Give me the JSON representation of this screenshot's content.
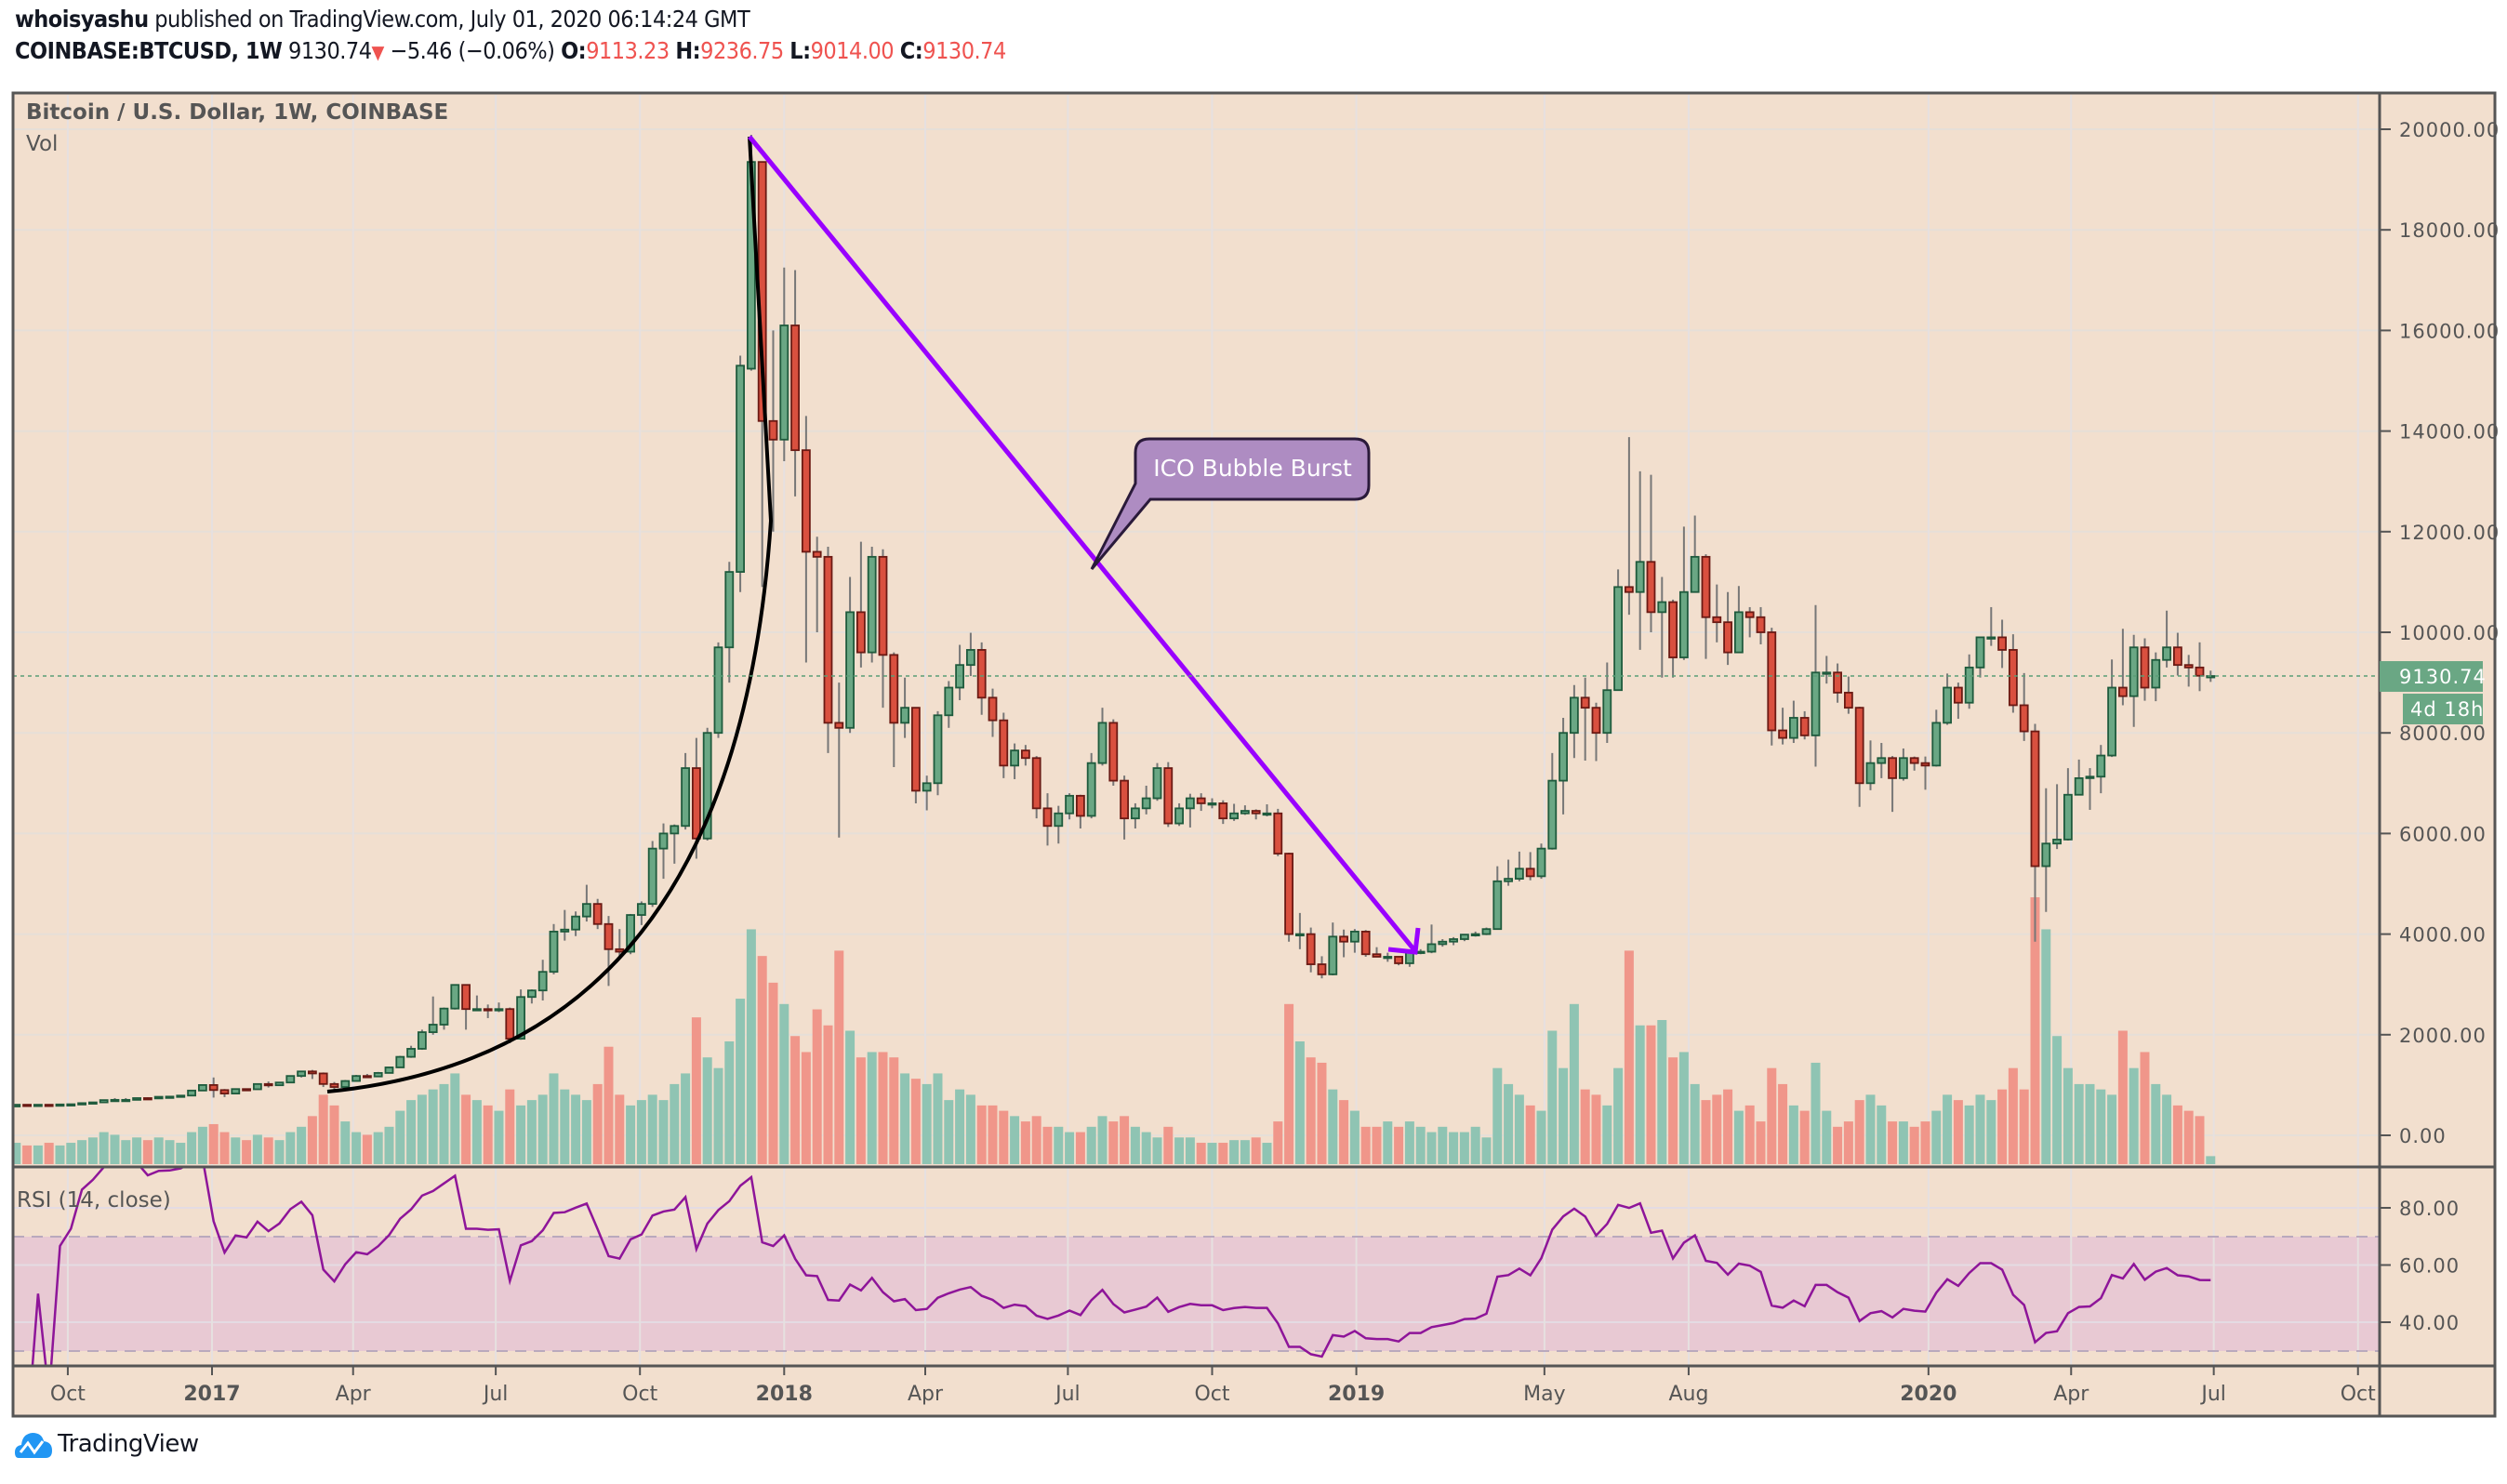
{
  "header": {
    "publisher": "whoisyashu",
    "published_text": "published on TradingView.com, July 01, 2020 06:14:24 GMT",
    "symbol": "COINBASE:BTCUSD, 1W",
    "last": "9130.74",
    "change": "−5.46 (−0.06%)",
    "o_label": "O:",
    "o": "9113.23",
    "h_label": "H:",
    "h": "9236.75",
    "l_label": "L:",
    "l": "9014.00",
    "c_label": "C:",
    "c": "9130.74",
    "down_arrow_icon": "triangle-down"
  },
  "chart_title": "Bitcoin / U.S. Dollar, 1W, COINBASE",
  "volume_label": "Vol",
  "rsi_label": "RSI (14, close)",
  "price_label": "9130.74",
  "countdown_label": "4d 18h",
  "annotation": "ICO Bubble Burst",
  "logo_text": "TradingView",
  "colors": {
    "background": "#f2dfce",
    "up": "#6aa784",
    "up_border": "#1f5b3d",
    "down": "#d9503f",
    "down_border": "#6b1a14",
    "vol_up": "#8fc4b3",
    "vol_down": "#f0968a",
    "rsi_line": "#8e1599",
    "rsi_band": "#e8c9d3",
    "trendline": "#9900ff",
    "callout": "#ae8cc2",
    "last_price": "#6aa784"
  },
  "chart_data": {
    "type": "candlestick",
    "interval": "1W",
    "y_axis": {
      "ticks": [
        "0.00",
        "2000.00",
        "4000.00",
        "6000.00",
        "8000.00",
        "10000.00",
        "12000.00",
        "14000.00",
        "16000.00",
        "18000.00",
        "20000.00"
      ],
      "range": [
        0,
        20000
      ]
    },
    "rsi_axis": {
      "ticks": [
        "40.00",
        "60.00",
        "80.00"
      ],
      "bands": [
        30,
        70
      ]
    },
    "x_ticks": [
      {
        "label": "Oct",
        "bold": false
      },
      {
        "label": "2017",
        "bold": true
      },
      {
        "label": "Apr",
        "bold": false
      },
      {
        "label": "Jul",
        "bold": false
      },
      {
        "label": "Oct",
        "bold": false
      },
      {
        "label": "2018",
        "bold": true
      },
      {
        "label": "Apr",
        "bold": false
      },
      {
        "label": "Jul",
        "bold": false
      },
      {
        "label": "Oct",
        "bold": false
      },
      {
        "label": "2019",
        "bold": true
      },
      {
        "label": "May",
        "bold": false
      },
      {
        "label": "Aug",
        "bold": false
      },
      {
        "label": "2020",
        "bold": true
      },
      {
        "label": "Apr",
        "bold": false
      },
      {
        "label": "Jul",
        "bold": false
      },
      {
        "label": "Oct",
        "bold": false
      }
    ],
    "ohlcv_columns": [
      "open",
      "high",
      "low",
      "close",
      "volume_relative"
    ],
    "ohlcv": [
      [
        573,
        612,
        570,
        608,
        8
      ],
      [
        608,
        612,
        600,
        607,
        7
      ],
      [
        607,
        612,
        602,
        608,
        7
      ],
      [
        608,
        610,
        595,
        603,
        8
      ],
      [
        603,
        615,
        600,
        614,
        7
      ],
      [
        614,
        622,
        608,
        618,
        8
      ],
      [
        618,
        642,
        615,
        640,
        9
      ],
      [
        640,
        660,
        630,
        655,
        10
      ],
      [
        655,
        705,
        650,
        700,
        12
      ],
      [
        700,
        740,
        680,
        705,
        11
      ],
      [
        705,
        740,
        690,
        705,
        9
      ],
      [
        705,
        750,
        700,
        740,
        10
      ],
      [
        740,
        755,
        720,
        733,
        9
      ],
      [
        733,
        770,
        730,
        766,
        10
      ],
      [
        766,
        775,
        750,
        770,
        9
      ],
      [
        770,
        795,
        765,
        790,
        8
      ],
      [
        790,
        900,
        785,
        890,
        12
      ],
      [
        890,
        1000,
        880,
        1000,
        14
      ],
      [
        1000,
        1150,
        750,
        900,
        15
      ],
      [
        900,
        920,
        760,
        830,
        12
      ],
      [
        830,
        930,
        820,
        920,
        10
      ],
      [
        920,
        930,
        880,
        915,
        9
      ],
      [
        915,
        1025,
        910,
        1020,
        11
      ],
      [
        1020,
        1070,
        950,
        995,
        10
      ],
      [
        995,
        1060,
        990,
        1050,
        9
      ],
      [
        1050,
        1190,
        1040,
        1180,
        12
      ],
      [
        1180,
        1280,
        1150,
        1270,
        14
      ],
      [
        1270,
        1300,
        1120,
        1230,
        18
      ],
      [
        1230,
        1250,
        960,
        1020,
        26
      ],
      [
        1020,
        1060,
        890,
        960,
        22
      ],
      [
        960,
        1100,
        940,
        1080,
        16
      ],
      [
        1080,
        1200,
        1070,
        1180,
        12
      ],
      [
        1180,
        1220,
        1140,
        1170,
        11
      ],
      [
        1170,
        1260,
        1160,
        1240,
        12
      ],
      [
        1240,
        1360,
        1230,
        1350,
        14
      ],
      [
        1350,
        1580,
        1340,
        1560,
        20
      ],
      [
        1560,
        1780,
        1540,
        1720,
        24
      ],
      [
        1720,
        2100,
        1700,
        2050,
        26
      ],
      [
        2050,
        2760,
        2000,
        2200,
        28
      ],
      [
        2200,
        2540,
        2100,
        2520,
        30
      ],
      [
        2520,
        3000,
        2500,
        2990,
        34
      ],
      [
        2990,
        2990,
        2100,
        2510,
        26
      ],
      [
        2510,
        2780,
        2500,
        2510,
        24
      ],
      [
        2510,
        2600,
        2330,
        2500,
        22
      ],
      [
        2500,
        2640,
        2450,
        2510,
        20
      ],
      [
        2510,
        2540,
        1830,
        1920,
        28
      ],
      [
        1920,
        2900,
        1900,
        2750,
        22
      ],
      [
        2750,
        2900,
        2620,
        2880,
        24
      ],
      [
        2880,
        3490,
        2680,
        3250,
        26
      ],
      [
        3250,
        4200,
        3200,
        4050,
        34
      ],
      [
        4050,
        4480,
        3870,
        4090,
        28
      ],
      [
        4090,
        4450,
        3960,
        4350,
        26
      ],
      [
        4350,
        4980,
        4250,
        4600,
        24
      ],
      [
        4600,
        4700,
        4100,
        4200,
        30
      ],
      [
        4200,
        4360,
        2970,
        3700,
        44
      ],
      [
        3700,
        4100,
        3500,
        3650,
        26
      ],
      [
        3650,
        4400,
        3600,
        4380,
        22
      ],
      [
        4380,
        4650,
        4180,
        4600,
        24
      ],
      [
        4600,
        5850,
        4540,
        5700,
        26
      ],
      [
        5700,
        6200,
        5100,
        6000,
        24
      ],
      [
        6000,
        6180,
        5400,
        6150,
        30
      ],
      [
        6150,
        7600,
        6080,
        7300,
        34
      ],
      [
        7300,
        7900,
        5500,
        5900,
        55
      ],
      [
        5900,
        8100,
        5860,
        8000,
        40
      ],
      [
        8000,
        9800,
        7900,
        9700,
        36
      ],
      [
        9700,
        11400,
        9000,
        11200,
        46
      ],
      [
        11200,
        15500,
        10800,
        15300,
        62
      ],
      [
        15240,
        19890,
        15200,
        19350,
        88
      ],
      [
        19350,
        19350,
        10900,
        14200,
        78
      ],
      [
        14200,
        16000,
        12000,
        13830,
        68
      ],
      [
        13830,
        17250,
        13400,
        16100,
        60
      ],
      [
        16100,
        17200,
        12700,
        13620,
        48
      ],
      [
        13620,
        14300,
        9400,
        11600,
        42
      ],
      [
        11600,
        11900,
        10000,
        11500,
        58
      ],
      [
        11500,
        11700,
        7600,
        8200,
        52
      ],
      [
        8200,
        9000,
        5920,
        8100,
        80
      ],
      [
        8100,
        11100,
        8000,
        10400,
        50
      ],
      [
        10400,
        11800,
        9300,
        9600,
        40
      ],
      [
        9600,
        11700,
        9400,
        11500,
        42
      ],
      [
        11500,
        11650,
        8500,
        9550,
        42
      ],
      [
        9550,
        9600,
        7320,
        8200,
        40
      ],
      [
        8200,
        9100,
        7900,
        8500,
        34
      ],
      [
        8500,
        8500,
        6600,
        6850,
        32
      ],
      [
        6850,
        7150,
        6460,
        7000,
        30
      ],
      [
        7000,
        8430,
        6760,
        8350,
        34
      ],
      [
        8350,
        9030,
        8100,
        8900,
        24
      ],
      [
        8900,
        9750,
        8650,
        9350,
        28
      ],
      [
        9350,
        9990,
        9130,
        9650,
        26
      ],
      [
        9650,
        9800,
        8360,
        8700,
        22
      ],
      [
        8700,
        8880,
        7920,
        8250,
        22
      ],
      [
        8250,
        8400,
        7100,
        7350,
        20
      ],
      [
        7350,
        7790,
        7080,
        7650,
        18
      ],
      [
        7650,
        7760,
        7350,
        7500,
        16
      ],
      [
        7500,
        7540,
        6300,
        6500,
        18
      ],
      [
        6500,
        6800,
        5760,
        6150,
        14
      ],
      [
        6150,
        6550,
        5800,
        6400,
        14
      ],
      [
        6400,
        6800,
        6280,
        6750,
        12
      ],
      [
        6750,
        6770,
        6100,
        6350,
        12
      ],
      [
        6350,
        7600,
        6300,
        7400,
        14
      ],
      [
        7400,
        8500,
        7350,
        8200,
        18
      ],
      [
        8200,
        8270,
        6950,
        7050,
        16
      ],
      [
        7050,
        7150,
        5880,
        6300,
        18
      ],
      [
        6300,
        6600,
        6100,
        6500,
        14
      ],
      [
        6500,
        6950,
        6380,
        6700,
        12
      ],
      [
        6700,
        7400,
        6650,
        7300,
        10
      ],
      [
        7300,
        7420,
        6130,
        6200,
        14
      ],
      [
        6200,
        6600,
        6150,
        6500,
        10
      ],
      [
        6500,
        6790,
        6120,
        6700,
        10
      ],
      [
        6700,
        6800,
        6450,
        6600,
        8
      ],
      [
        6600,
        6700,
        6500,
        6600,
        8
      ],
      [
        6600,
        6660,
        6190,
        6300,
        8
      ],
      [
        6300,
        6590,
        6250,
        6400,
        9
      ],
      [
        6400,
        6560,
        6370,
        6450,
        9
      ],
      [
        6450,
        6480,
        6280,
        6400,
        10
      ],
      [
        6400,
        6580,
        6340,
        6400,
        8
      ],
      [
        6400,
        6490,
        5550,
        5600,
        16
      ],
      [
        5600,
        5620,
        3850,
        4000,
        60
      ],
      [
        4000,
        4420,
        3700,
        4000,
        46
      ],
      [
        4000,
        4130,
        3240,
        3400,
        40
      ],
      [
        3400,
        3560,
        3120,
        3200,
        38
      ],
      [
        3200,
        4230,
        3180,
        3950,
        28
      ],
      [
        3950,
        4090,
        3540,
        3850,
        24
      ],
      [
        3850,
        4100,
        3630,
        4050,
        20
      ],
      [
        4050,
        4080,
        3550,
        3600,
        14
      ],
      [
        3600,
        3740,
        3540,
        3550,
        14
      ],
      [
        3550,
        3630,
        3450,
        3550,
        16
      ],
      [
        3550,
        3560,
        3380,
        3420,
        14
      ],
      [
        3420,
        3690,
        3350,
        3650,
        16
      ],
      [
        3650,
        3700,
        3600,
        3650,
        14
      ],
      [
        3650,
        4190,
        3620,
        3800,
        12
      ],
      [
        3800,
        3900,
        3750,
        3850,
        14
      ],
      [
        3850,
        3940,
        3780,
        3900,
        12
      ],
      [
        3900,
        4000,
        3860,
        3990,
        12
      ],
      [
        3990,
        4050,
        3950,
        4000,
        14
      ],
      [
        4000,
        4130,
        3980,
        4100,
        10
      ],
      [
        4100,
        5350,
        4090,
        5050,
        36
      ],
      [
        5050,
        5480,
        4960,
        5100,
        30
      ],
      [
        5100,
        5640,
        5050,
        5300,
        26
      ],
      [
        5300,
        5630,
        5070,
        5150,
        22
      ],
      [
        5150,
        5800,
        5100,
        5700,
        20
      ],
      [
        5700,
        7600,
        5680,
        7050,
        50
      ],
      [
        7050,
        8300,
        6380,
        8000,
        36
      ],
      [
        8000,
        8950,
        7500,
        8700,
        60
      ],
      [
        8700,
        9100,
        7450,
        8500,
        28
      ],
      [
        8500,
        8600,
        7440,
        8000,
        26
      ],
      [
        8000,
        9400,
        7800,
        8850,
        22
      ],
      [
        8850,
        11250,
        8850,
        10900,
        36
      ],
      [
        10900,
        13880,
        10350,
        10800,
        80
      ],
      [
        10800,
        13200,
        9650,
        11400,
        52
      ],
      [
        11400,
        13130,
        10000,
        10400,
        52
      ],
      [
        10400,
        11100,
        9100,
        10600,
        54
      ],
      [
        10600,
        10650,
        9100,
        9500,
        40
      ],
      [
        9500,
        12100,
        9450,
        10800,
        42
      ],
      [
        10800,
        12320,
        10800,
        11500,
        30
      ],
      [
        11500,
        11550,
        9470,
        10300,
        24
      ],
      [
        10300,
        10950,
        9800,
        10200,
        26
      ],
      [
        10200,
        10800,
        9350,
        9600,
        28
      ],
      [
        9600,
        10920,
        9600,
        10400,
        20
      ],
      [
        10400,
        10500,
        9900,
        10300,
        22
      ],
      [
        10300,
        10500,
        9760,
        10000,
        16
      ],
      [
        10000,
        10090,
        7750,
        8050,
        36
      ],
      [
        8050,
        8500,
        7770,
        7900,
        30
      ],
      [
        7900,
        8640,
        7800,
        8300,
        22
      ],
      [
        8300,
        8430,
        7870,
        7950,
        20
      ],
      [
        7950,
        10540,
        7330,
        9200,
        38
      ],
      [
        9200,
        9530,
        8980,
        9200,
        20
      ],
      [
        9200,
        9380,
        8600,
        8800,
        14
      ],
      [
        8800,
        9120,
        8380,
        8500,
        16
      ],
      [
        8500,
        8520,
        6530,
        7000,
        24
      ],
      [
        7000,
        7850,
        6860,
        7400,
        26
      ],
      [
        7400,
        7800,
        7100,
        7500,
        22
      ],
      [
        7500,
        7540,
        6430,
        7100,
        16
      ],
      [
        7100,
        7690,
        7050,
        7500,
        16
      ],
      [
        7500,
        7530,
        7250,
        7400,
        14
      ],
      [
        7400,
        7530,
        6870,
        7350,
        16
      ],
      [
        7350,
        8460,
        7330,
        8200,
        20
      ],
      [
        8200,
        9180,
        8160,
        8900,
        26
      ],
      [
        8900,
        9000,
        8280,
        8600,
        24
      ],
      [
        8600,
        9560,
        8480,
        9300,
        22
      ],
      [
        9300,
        9870,
        9100,
        9900,
        26
      ],
      [
        9900,
        10500,
        9730,
        9900,
        24
      ],
      [
        9900,
        10250,
        9290,
        9650,
        28
      ],
      [
        9650,
        9960,
        8400,
        8550,
        36
      ],
      [
        8550,
        9190,
        7840,
        8030,
        28
      ],
      [
        8030,
        8180,
        3850,
        5350,
        100
      ],
      [
        5350,
        6900,
        4440,
        5800,
        88
      ],
      [
        5800,
        6980,
        5690,
        5880,
        48
      ],
      [
        5880,
        7300,
        5860,
        6770,
        36
      ],
      [
        6770,
        7470,
        6760,
        7100,
        30
      ],
      [
        7100,
        7300,
        6470,
        7130,
        30
      ],
      [
        7130,
        7760,
        6800,
        7550,
        28
      ],
      [
        7550,
        9460,
        7520,
        8900,
        26
      ],
      [
        8900,
        10070,
        8550,
        8730,
        50
      ],
      [
        8730,
        9950,
        8120,
        9700,
        36
      ],
      [
        9700,
        9880,
        8640,
        8900,
        42
      ],
      [
        8900,
        9600,
        8630,
        9450,
        30
      ],
      [
        9450,
        10430,
        9300,
        9700,
        26
      ],
      [
        9700,
        9990,
        9140,
        9350,
        22
      ],
      [
        9350,
        9550,
        8920,
        9300,
        20
      ],
      [
        9300,
        9800,
        8830,
        9136.2,
        18
      ],
      [
        9113.23,
        9236.75,
        9014.0,
        9130.74,
        3
      ]
    ]
  }
}
